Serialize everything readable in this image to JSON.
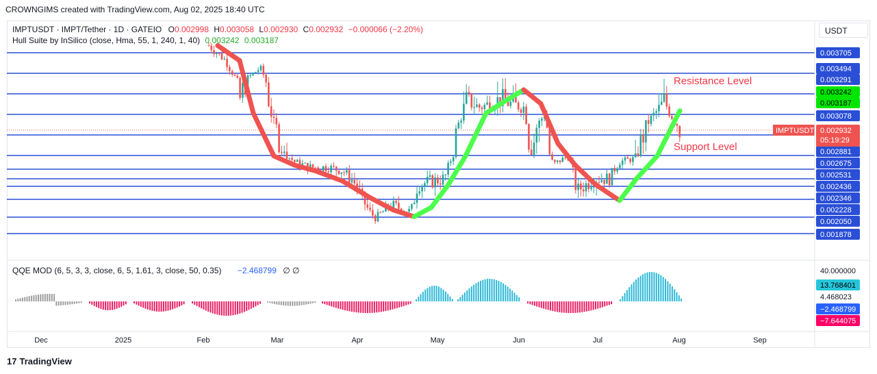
{
  "header": {
    "watermark": "CROWNGIMS created with TradingView.com, Aug 02, 2025 18:40 UTC"
  },
  "legend": {
    "symbol": "IMPTUSDT · IMPT/Tether · 1D · GATEIO",
    "o_label": "O",
    "o_value": "0.002998",
    "h_label": "H",
    "h_value": "0.003058",
    "l_label": "L",
    "l_value": "0.002930",
    "c_label": "C",
    "c_value": "0.002932",
    "change": "−0.000066 (−2.20%)",
    "hull_name": "Hull Suite by InSilico (close, Hma, 55, 1, 240, 1, 40)",
    "hull_v1": "0.003242",
    "hull_v2": "0.003187"
  },
  "currency": "USDT",
  "annotations": {
    "resistance": "Resistance Level",
    "support": "Support Level"
  },
  "price_axis": {
    "labels": [
      {
        "text": "0.003705",
        "price": 0.003705
      },
      {
        "text": "0.003494",
        "price": 0.003494
      },
      {
        "text": "0.003291",
        "price": 0.003291
      },
      {
        "text": "0.003242",
        "price": 0.003242,
        "bg": "#00e600"
      },
      {
        "text": "0.003187",
        "price": 0.003187,
        "bg": "#00e600"
      },
      {
        "text": "0.003078",
        "price": 0.003078
      },
      {
        "text": "0.002881",
        "price": 0.002881
      },
      {
        "text": "0.002675",
        "price": 0.002675
      },
      {
        "text": "0.002531",
        "price": 0.002531
      },
      {
        "text": "0.002436",
        "price": 0.002436
      },
      {
        "text": "0.002346",
        "price": 0.002346
      },
      {
        "text": "0.002228",
        "price": 0.002228
      },
      {
        "text": "0.002050",
        "price": 0.00205
      },
      {
        "text": "0.001878",
        "price": 0.001878
      }
    ],
    "current_symbol": "IMPTUSDT",
    "current_price": "0.002932",
    "countdown": "05:19:29"
  },
  "horizontal_levels": [
    0.003705,
    0.003494,
    0.003291,
    0.003078,
    0.002881,
    0.002675,
    0.002531,
    0.002436,
    0.002346,
    0.002228,
    0.00205,
    0.001878
  ],
  "qqe": {
    "name": "QQE MOD (6, 5, 3, 3, close, 6, 5, 1.61, 3, close, 50, 0.35)",
    "value": "−2.468799",
    "extra": "∅  ∅",
    "labels": [
      {
        "text": "40.000000",
        "value": 40,
        "bg": ""
      },
      {
        "text": "13.768401",
        "value": 13.768401,
        "bg": "#26c6da"
      },
      {
        "text": "4.468023",
        "value": 4.468023,
        "bg": ""
      },
      {
        "text": "−2.468799",
        "value": -2.468799,
        "bg": "#2962ff"
      },
      {
        "text": "−7.644075",
        "value": -7.644075,
        "bg": "#ff0066"
      }
    ]
  },
  "time_axis": [
    "Dec",
    "2025",
    "Feb",
    "Mar",
    "Apr",
    "May",
    "Jun",
    "Jul",
    "Aug",
    "Sep"
  ],
  "colors": {
    "level": "#2a4fd6",
    "hull_bear": "#ef5350",
    "hull_bull": "#4cff4c",
    "up": "#26a69a",
    "down": "#ef5350",
    "qqe_up": "#2cb8d6",
    "qqe_down": "#e91e63",
    "qqe_neutral": "#9e9e9e"
  },
  "brand": "TradingView"
}
